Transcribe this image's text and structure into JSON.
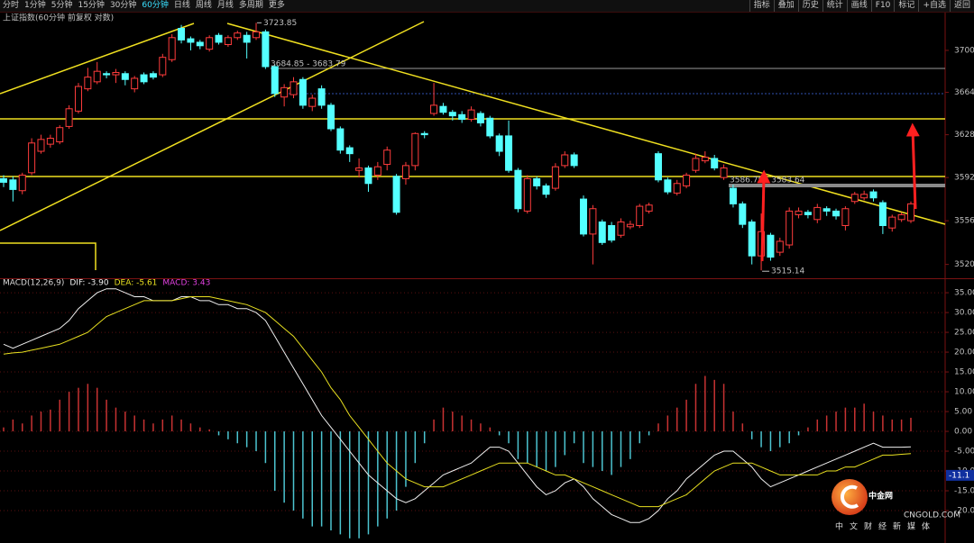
{
  "toolbar": {
    "periods": [
      "分时",
      "1分钟",
      "5分钟",
      "15分钟",
      "30分钟",
      "60分钟",
      "日线",
      "周线",
      "月线",
      "多周期",
      "更多"
    ],
    "active_period_index": 5,
    "tools": [
      "指标",
      "叠加",
      "历史",
      "统计",
      "画线",
      "F10",
      "标记",
      "+自选",
      "返回"
    ]
  },
  "chart_data": [
    {
      "type": "candlestick",
      "title": "上证指数(60分钟 前复权 对数)",
      "log_scale": true,
      "up_color": "#ff3c3c",
      "down_color": "#54ffff",
      "ylim": [
        3509.4,
        3732.7
      ],
      "yticks": [
        3700,
        3664,
        3628,
        3592,
        3556,
        3520
      ],
      "annotations": [
        "3684.85 - 3683.79",
        "3586.75 - 3583.64"
      ],
      "open": [
        3591,
        3590,
        3581,
        3596,
        3614,
        3620,
        3622,
        3635,
        3648,
        3667,
        3673,
        3680,
        3679,
        3680,
        3667,
        3679,
        3680,
        3679,
        3692,
        3719,
        3710,
        3707,
        3701,
        3713,
        3705,
        3711,
        3713,
        3711,
        3716,
        3686,
        3660,
        3662,
        3675,
        3652,
        3667,
        3653,
        3633,
        3617,
        3598,
        3600,
        3594,
        3603,
        3593,
        3591,
        3602,
        3629,
        3646,
        3652,
        3647,
        3645,
        3641,
        3646,
        3642,
        3627,
        3627,
        3598,
        3564,
        3591,
        3585,
        3583,
        3602,
        3611,
        3574,
        3545,
        3555,
        3552,
        3544,
        3551,
        3552,
        3564,
        3612,
        3590,
        3579,
        3585,
        3598,
        3606,
        3608,
        3592,
        3583,
        3570,
        3555,
        3527,
        3544,
        3530,
        3536,
        3561,
        3563,
        3557,
        3566,
        3564,
        3552,
        3572,
        3575,
        3580,
        3571,
        3550,
        3557,
        3556
      ],
      "high": [
        3594,
        3593,
        3596,
        3625,
        3628,
        3628,
        3636,
        3653,
        3672,
        3685,
        3690,
        3682,
        3684,
        3682,
        3678,
        3681,
        3682,
        3697,
        3714,
        3722,
        3712,
        3709,
        3713,
        3715,
        3713,
        3717,
        3716,
        3723.85,
        3718,
        3688,
        3671,
        3677,
        3677,
        3662,
        3670,
        3655,
        3635,
        3619,
        3608,
        3602,
        3605,
        3618,
        3595,
        3605,
        3630,
        3631,
        3672,
        3655,
        3649,
        3648,
        3652,
        3648,
        3644,
        3629,
        3640,
        3600,
        3594,
        3593,
        3587,
        3604,
        3614,
        3613,
        3577,
        3569,
        3557,
        3555,
        3558,
        3556,
        3570,
        3571,
        3614,
        3592,
        3590,
        3596,
        3612,
        3614,
        3611,
        3603,
        3586,
        3572,
        3557,
        3562,
        3546,
        3542,
        3567,
        3567,
        3565,
        3570,
        3568,
        3566,
        3568,
        3580,
        3581,
        3582,
        3573,
        3561,
        3563,
        3572
      ],
      "low": [
        3584,
        3572,
        3578,
        3594,
        3612,
        3617,
        3620,
        3633,
        3646,
        3665,
        3671,
        3676,
        3672,
        3670,
        3664,
        3671,
        3675,
        3677,
        3690,
        3706,
        3700,
        3701,
        3699,
        3705,
        3703,
        3709,
        3693,
        3709,
        3684,
        3660,
        3652,
        3659,
        3650,
        3648,
        3650,
        3631,
        3612,
        3605,
        3592,
        3580,
        3590,
        3598,
        3561,
        3586,
        3598,
        3625,
        3644,
        3645,
        3640,
        3638,
        3639,
        3635,
        3625,
        3610,
        3596,
        3563,
        3562,
        3582,
        3575,
        3581,
        3600,
        3600,
        3543,
        3520,
        3536,
        3538,
        3542,
        3549,
        3550,
        3562,
        3588,
        3578,
        3577,
        3583,
        3596,
        3604,
        3598,
        3590,
        3567,
        3550,
        3520,
        3515.14,
        3523,
        3527,
        3533,
        3558,
        3558,
        3554,
        3560,
        3557,
        3548,
        3570,
        3573,
        3572,
        3545,
        3547,
        3555,
        3554
      ],
      "close": [
        3588,
        3582,
        3594,
        3621,
        3624,
        3625,
        3634,
        3650,
        3669,
        3677,
        3682,
        3679,
        3681,
        3675,
        3676,
        3673,
        3677,
        3694,
        3711,
        3709,
        3707,
        3704,
        3711,
        3707,
        3711,
        3715,
        3707,
        3716,
        3686,
        3663,
        3668,
        3673,
        3653,
        3659,
        3653,
        3633,
        3615,
        3612,
        3600,
        3587,
        3601,
        3615,
        3563,
        3602,
        3629,
        3628,
        3653,
        3647,
        3644,
        3641,
        3649,
        3638,
        3627,
        3614,
        3598,
        3566,
        3591,
        3585,
        3578,
        3601,
        3611,
        3602,
        3545,
        3566,
        3538,
        3540,
        3555,
        3553,
        3568,
        3569,
        3590,
        3580,
        3587,
        3594,
        3608,
        3609,
        3600,
        3600,
        3570,
        3553,
        3527,
        3547,
        3526,
        3539,
        3564,
        3564,
        3561,
        3567,
        3564,
        3560,
        3566,
        3578,
        3578,
        3575,
        3552,
        3559,
        3561,
        3570
      ]
    },
    {
      "type": "macd",
      "title": "MACD(12,26,9)",
      "ylim": [
        -27.5,
        38.2
      ],
      "yticks": [
        {
          "value": 35,
          "label": "35.00"
        },
        {
          "value": 30,
          "label": "30.00"
        },
        {
          "value": 25,
          "label": "25.00"
        },
        {
          "value": 20,
          "label": "20.00"
        },
        {
          "value": 15,
          "label": "15.00"
        },
        {
          "value": 10,
          "label": "10.00"
        },
        {
          "value": 5,
          "label": "5.00"
        },
        {
          "value": 0,
          "label": "0.00"
        },
        {
          "value": -5,
          "label": "-5.00"
        },
        {
          "value": -10,
          "label": "-10.00"
        },
        {
          "value": -15,
          "label": "-15.00"
        },
        {
          "value": -20,
          "label": "-20.00"
        }
      ],
      "cursor_value": -11.1,
      "series": [
        {
          "name": "DIF: -3.90",
          "kind": "line",
          "color": "#f0f0f0",
          "values": [
            22,
            21,
            22,
            23,
            24,
            25,
            26,
            28,
            31,
            33,
            35,
            36,
            36,
            35,
            34,
            34,
            33,
            33,
            33,
            34,
            34,
            33,
            33,
            32,
            32,
            31,
            31,
            30,
            28,
            24,
            20,
            16,
            12,
            8,
            4,
            1,
            -2,
            -5,
            -8,
            -11,
            -13,
            -15,
            -17,
            -18,
            -17,
            -15,
            -13,
            -11,
            -10,
            -9,
            -8,
            -6,
            -4,
            -4,
            -5,
            -8,
            -11,
            -14,
            -16,
            -15,
            -13,
            -12,
            -14,
            -17,
            -19,
            -21,
            -22,
            -23,
            -23,
            -22,
            -20,
            -17,
            -15,
            -12,
            -10,
            -8,
            -6,
            -5,
            -5,
            -7,
            -9,
            -12,
            -14,
            -13,
            -12,
            -11,
            -10,
            -9,
            -8,
            -7,
            -6,
            -5,
            -4,
            -3,
            -4,
            -4,
            -4,
            -3.9
          ]
        },
        {
          "name": "DEA: -5.61",
          "kind": "line",
          "color": "#e8e020",
          "values": [
            19.5,
            19.8,
            20,
            20.5,
            21,
            21.5,
            22,
            23,
            24,
            25,
            27,
            29,
            30,
            31,
            32,
            33,
            33,
            33,
            33,
            33.5,
            34,
            34,
            34,
            33.5,
            33,
            32.5,
            32,
            31,
            30,
            28,
            26,
            24,
            21,
            18,
            15,
            11,
            8,
            4,
            1,
            -2,
            -5,
            -8,
            -10,
            -12,
            -13,
            -14,
            -14,
            -14,
            -13,
            -12,
            -11,
            -10,
            -9,
            -8,
            -8,
            -8,
            -8,
            -9,
            -10,
            -11,
            -11,
            -12,
            -13,
            -14,
            -15,
            -16,
            -17,
            -18,
            -19,
            -19,
            -19,
            -18,
            -17,
            -16,
            -14,
            -12,
            -10,
            -9,
            -8,
            -8,
            -8,
            -9,
            -10,
            -11,
            -11,
            -11,
            -11,
            -11,
            -10,
            -10,
            -9,
            -9,
            -8,
            -7,
            -6,
            -6,
            -5.8,
            -5.61
          ]
        },
        {
          "name": "MACD: 3.43",
          "kind": "histogram",
          "color": "#e040e0",
          "positive_color": "#c83232",
          "negative_color": "#4cc4d0",
          "values": [
            1,
            3,
            2,
            4,
            5,
            5.5,
            8,
            10,
            11,
            12,
            11,
            8,
            6,
            5,
            4,
            3,
            2,
            3,
            4,
            3,
            2,
            1,
            0.5,
            -1,
            -2,
            -3,
            -4,
            -5,
            -8,
            -15,
            -18,
            -20,
            -22,
            -24,
            -24,
            -25,
            -26,
            -27,
            -27,
            -26,
            -24,
            -22,
            -20,
            -14,
            -8,
            -3,
            3,
            6,
            5,
            4,
            3,
            2,
            1,
            -1,
            -3,
            -7,
            -8,
            -9,
            -10,
            -9,
            -6,
            -3,
            -8,
            -9,
            -10,
            -11,
            -9,
            -7,
            -3,
            -1,
            2,
            4,
            6,
            8,
            12,
            14,
            13,
            12,
            5,
            2,
            -2,
            -4,
            -5,
            -4,
            -3,
            -1,
            1,
            3,
            4,
            5,
            6,
            6,
            7,
            5,
            4,
            3,
            3,
            3.43
          ]
        }
      ]
    }
  ],
  "logo": {
    "name": "中金网",
    "domain": "CNGOLD.COM",
    "slogan": "中文财经新媒体"
  }
}
